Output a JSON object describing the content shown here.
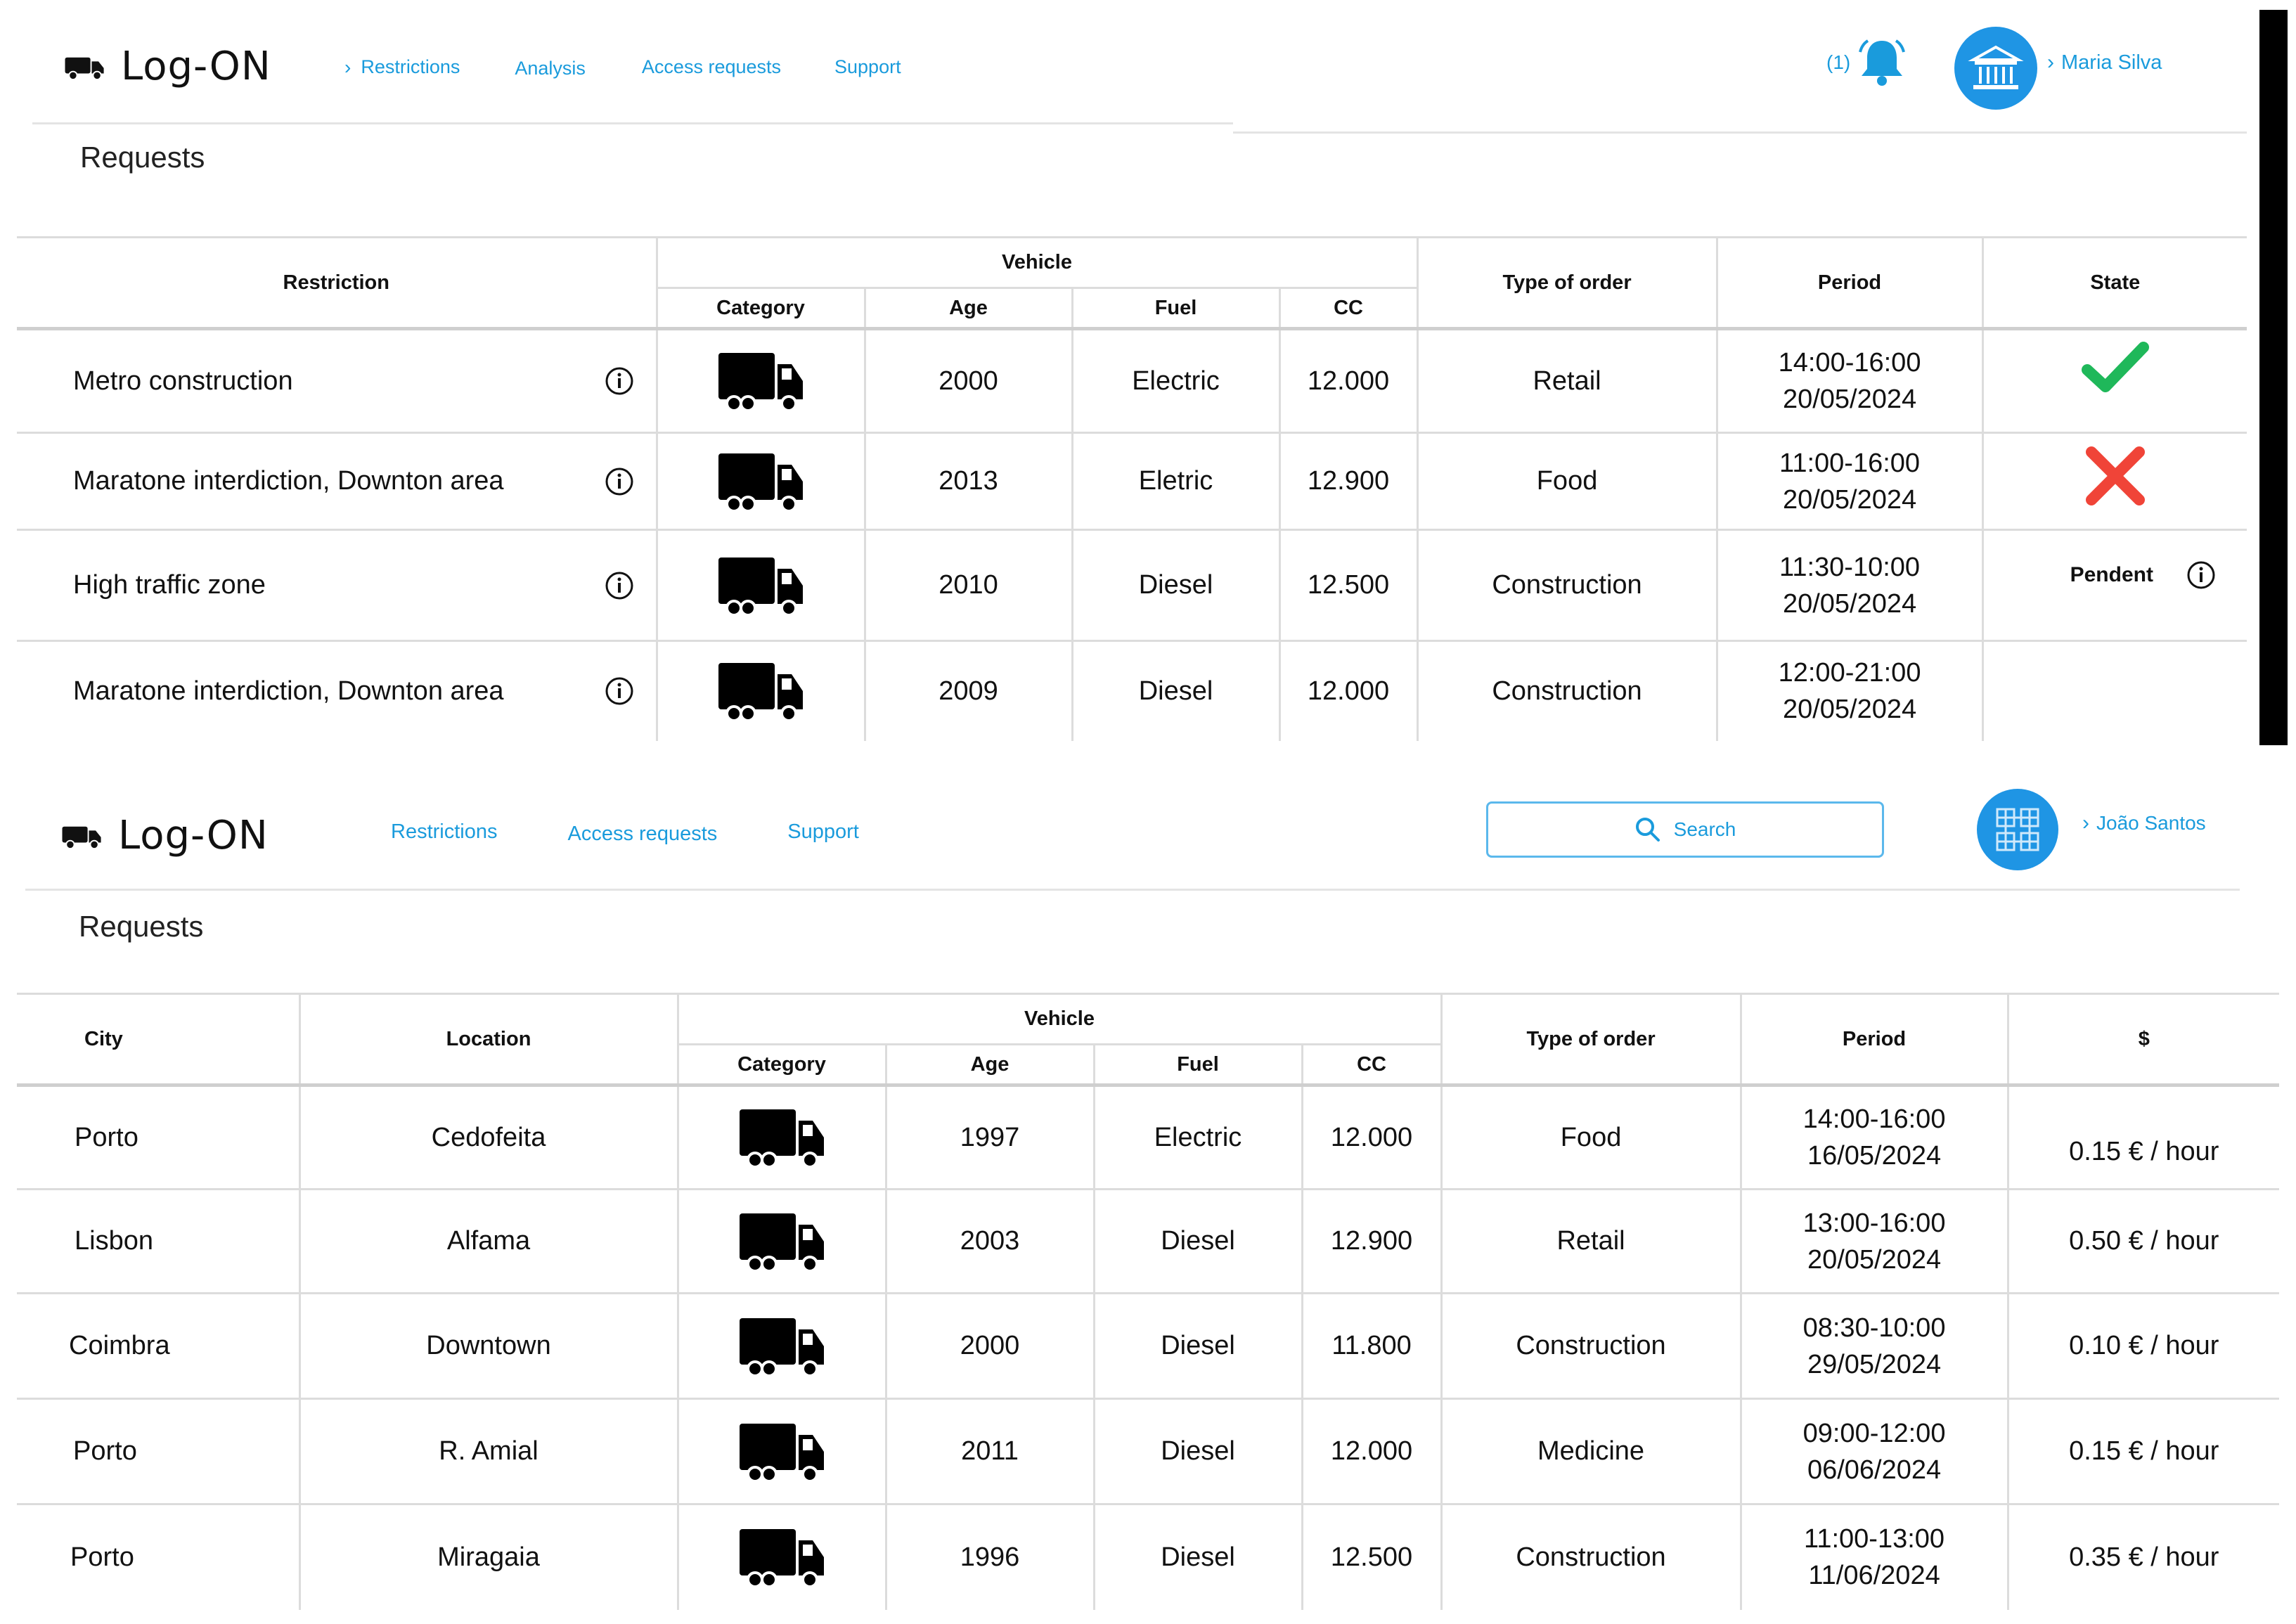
{
  "app_top": {
    "logo": "Log-ON",
    "nav": [
      {
        "label": "Restrictions",
        "chevron": true
      },
      {
        "label": "Analysis",
        "chevron": false
      },
      {
        "label": "Access requests",
        "chevron": false
      },
      {
        "label": "Support",
        "chevron": false
      }
    ],
    "notification_count": "(1)",
    "user_name": "Maria Silva",
    "page_title": "Requests",
    "table": {
      "headers": {
        "restriction": "Restriction",
        "vehicle": "Vehicle",
        "category": "Category",
        "age": "Age",
        "fuel": "Fuel",
        "cc": "CC",
        "type_of_order": "Type of order",
        "period": "Period",
        "state": "State"
      },
      "rows": [
        {
          "restriction": "Metro construction",
          "age": "2000",
          "fuel": "Electric",
          "cc": "12.000",
          "type": "Retail",
          "time": "14:00-16:00",
          "date": "20/05/2024",
          "state": "approved"
        },
        {
          "restriction": "Maratone interdiction, Downton area",
          "age": "2013",
          "fuel": "Eletric",
          "cc": "12.900",
          "type": "Food",
          "time": "11:00-16:00",
          "date": "20/05/2024",
          "state": "rejected"
        },
        {
          "restriction": "High traffic zone",
          "age": "2010",
          "fuel": "Diesel",
          "cc": "12.500",
          "type": "Construction",
          "time": "11:30-10:00",
          "date": "20/05/2024",
          "state": "Pendent"
        },
        {
          "restriction": "Maratone interdiction, Downton area",
          "age": "2009",
          "fuel": "Diesel",
          "cc": "12.000",
          "type": "Construction",
          "time": "12:00-21:00",
          "date": "20/05/2024",
          "state": ""
        }
      ]
    }
  },
  "app_bottom": {
    "logo": "Log-ON",
    "nav": [
      {
        "label": "Restrictions"
      },
      {
        "label": "Access requests"
      },
      {
        "label": "Support"
      }
    ],
    "search_label": "Search",
    "user_name": "João Santos",
    "page_title": "Requests",
    "table": {
      "headers": {
        "city": "City",
        "location": "Location",
        "vehicle": "Vehicle",
        "category": "Category",
        "age": "Age",
        "fuel": "Fuel",
        "cc": "CC",
        "type_of_order": "Type of order",
        "period": "Period",
        "price": "$"
      },
      "rows": [
        {
          "city": "Porto",
          "location": "Cedofeita",
          "age": "1997",
          "fuel": "Electric",
          "cc": "12.000",
          "type": "Food",
          "time": "14:00-16:00",
          "date": "16/05/2024",
          "price": "0.15 € / hour"
        },
        {
          "city": "Lisbon",
          "location": "Alfama",
          "age": "2003",
          "fuel": "Diesel",
          "cc": "12.900",
          "type": "Retail",
          "time": "13:00-16:00",
          "date": "20/05/2024",
          "price": "0.50 € / hour"
        },
        {
          "city": "Coimbra",
          "location": "Downtown",
          "age": "2000",
          "fuel": "Diesel",
          "cc": "11.800",
          "type": "Construction",
          "time": "08:30-10:00",
          "date": "29/05/2024",
          "price": "0.10 € / hour"
        },
        {
          "city": "Porto",
          "location": "R. Amial",
          "age": "2011",
          "fuel": "Diesel",
          "cc": "12.000",
          "type": "Medicine",
          "time": "09:00-12:00",
          "date": "06/06/2024",
          "price": "0.15 € / hour"
        },
        {
          "city": "Porto",
          "location": "Miragaia",
          "age": "1996",
          "fuel": "Diesel",
          "cc": "12.500",
          "type": "Construction",
          "time": "11:00-13:00",
          "date": "11/06/2024",
          "price": "0.35 € / hour"
        }
      ]
    }
  },
  "colors": {
    "accent": "#1a9bdc",
    "avatar": "#1f95e4",
    "approved": "#1fb85a",
    "rejected": "#f04438",
    "divider": "#dcdcdc"
  },
  "icons": [
    "truck-icon",
    "bell-icon",
    "bank-icon",
    "grid-avatar-icon",
    "info-icon",
    "check-icon",
    "cross-icon",
    "search-icon",
    "chevron-right-icon"
  ]
}
